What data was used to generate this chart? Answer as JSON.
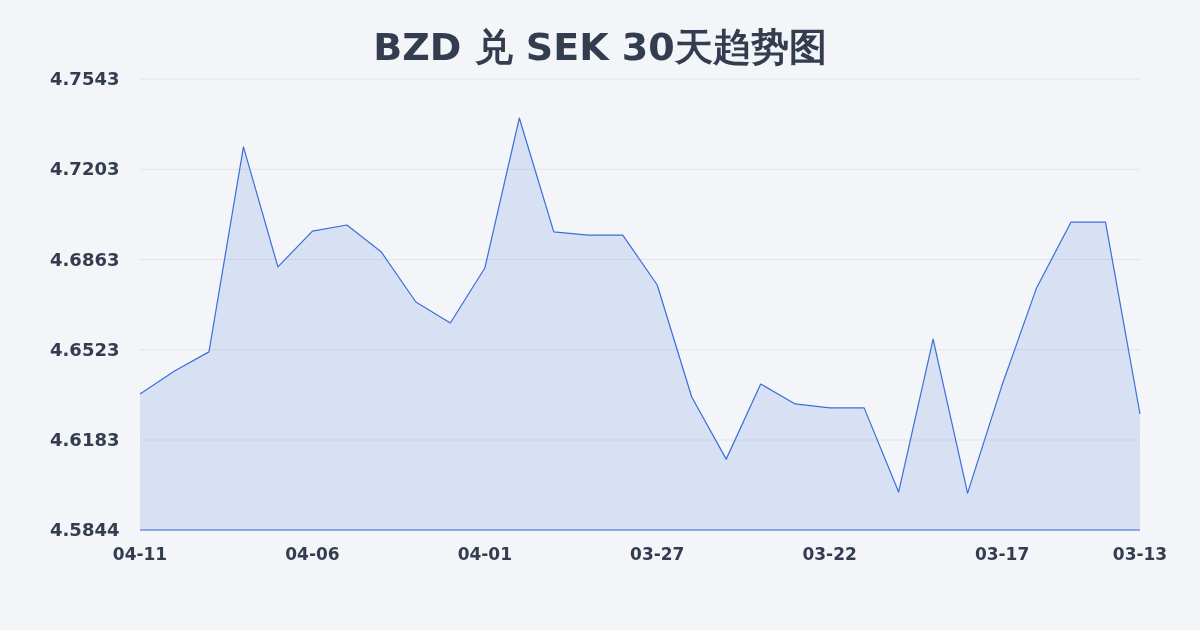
{
  "chart_data": {
    "type": "area",
    "title": "BZD 兑 SEK 30天趋势图",
    "categories": [
      "04-11",
      null,
      null,
      null,
      null,
      "04-06",
      null,
      null,
      null,
      null,
      "04-01",
      null,
      null,
      null,
      null,
      "03-27",
      null,
      null,
      null,
      null,
      "03-22",
      null,
      null,
      null,
      null,
      "03-17",
      null,
      null,
      null,
      "03-13"
    ],
    "values": [
      4.6356,
      4.6443,
      4.6515,
      4.7287,
      4.6835,
      4.697,
      4.6993,
      4.6891,
      4.6703,
      4.6624,
      4.6831,
      4.7396,
      4.6967,
      4.6955,
      4.6955,
      4.6767,
      4.6345,
      4.6111,
      4.6394,
      4.6319,
      4.6304,
      4.6304,
      4.5987,
      4.6563,
      4.5983,
      4.639,
      4.6756,
      4.7004,
      4.7004,
      4.6281
    ],
    "color": "#3a6fd8",
    "ylim": [
      4.5844,
      4.7543
    ],
    "yticks": [
      4.5844,
      4.6183,
      4.6523,
      4.6863,
      4.7203,
      4.7543
    ],
    "grid": "y"
  }
}
